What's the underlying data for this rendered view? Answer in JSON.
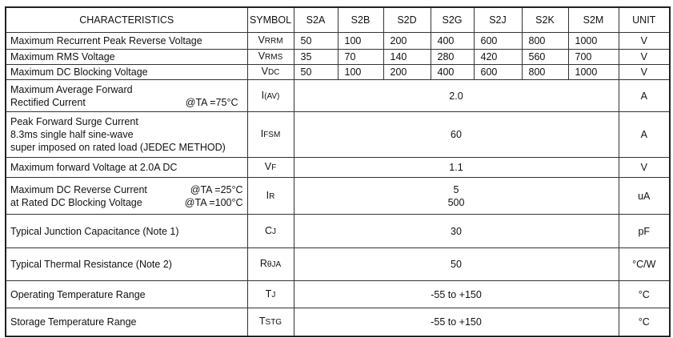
{
  "headers": {
    "characteristics": "CHARACTERISTICS",
    "symbol": "SYMBOL",
    "parts": [
      "S2A",
      "S2B",
      "S2D",
      "S2G",
      "S2J",
      "S2K",
      "S2M"
    ],
    "unit": "UNIT"
  },
  "rows": [
    {
      "label": "Maximum Recurrent Peak Reverse Voltage",
      "sym": "V",
      "sub": "RRM",
      "values": [
        "50",
        "100",
        "200",
        "400",
        "600",
        "800",
        "1000"
      ],
      "unit": "V"
    },
    {
      "label": "Maximum RMS Voltage",
      "sym": "V",
      "sub": "RMS",
      "values": [
        "35",
        "70",
        "140",
        "280",
        "420",
        "560",
        "700"
      ],
      "unit": "V"
    },
    {
      "label": "Maximum DC Blocking Voltage",
      "sym": "V",
      "sub": "DC",
      "values": [
        "50",
        "100",
        "200",
        "400",
        "600",
        "800",
        "1000"
      ],
      "unit": "V"
    },
    {
      "label1": "Maximum Average Forward",
      "label2": "Rectified  Current",
      "cond": "@TA =75°C",
      "sym": "I",
      "sub": "(AV)",
      "value": "2.0",
      "unit": "A"
    },
    {
      "label1": "Peak Forward Surge Current",
      "label2": "8.3ms single half sine-wave",
      "label3": "super imposed on rated load (JEDEC METHOD)",
      "sym": "I",
      "sub": "FSM",
      "value": "60",
      "unit": "A"
    },
    {
      "label": "Maximum forward Voltage at 2.0A DC",
      "sym": "V",
      "sub": "F",
      "value": "1.1",
      "unit": "V"
    },
    {
      "label1": "Maximum DC Reverse Current",
      "label2": "at Rated DC Blocking Voltage",
      "cond1": "@TA =25°C",
      "cond2": "@TA =100°C",
      "sym": "I",
      "sub": "R",
      "value1": "5",
      "value2": "500",
      "unit": "uA"
    },
    {
      "label": "Typical Junction Capacitance (Note 1)",
      "sym": "C",
      "sub": "J",
      "value": "30",
      "unit": "pF"
    },
    {
      "label": "Typical Thermal Resistance (Note 2)",
      "sym": "R",
      "sub": "θJA",
      "value": "50",
      "unit": "°C/W"
    },
    {
      "label": "Operating Temperature Range",
      "sym": "T",
      "sub": "J",
      "value": "-55 to +150",
      "unit": "°C"
    },
    {
      "label": "Storage Temperature Range",
      "sym": "T",
      "sub": "STG",
      "value": "-55 to +150",
      "unit": "°C"
    }
  ]
}
